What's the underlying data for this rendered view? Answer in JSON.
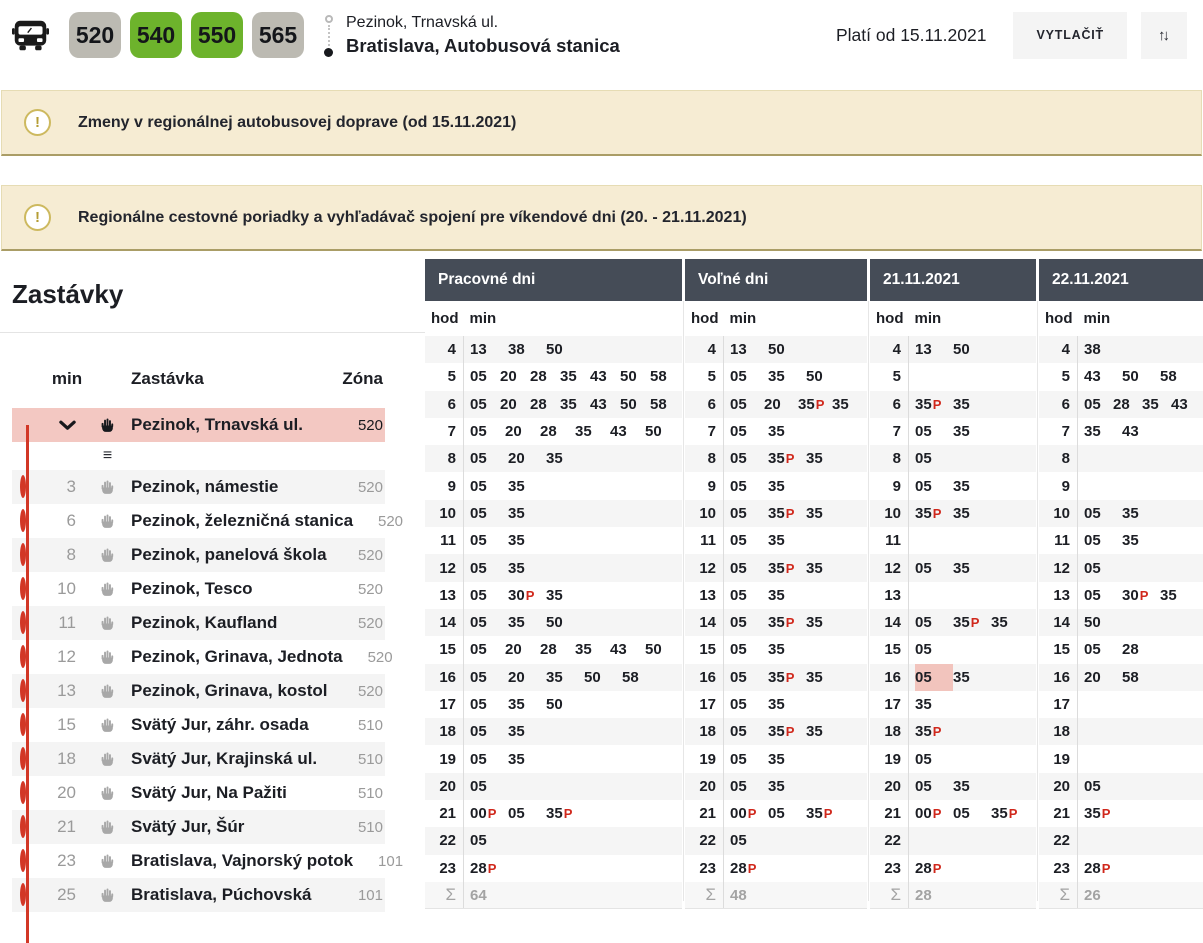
{
  "header": {
    "badges": [
      {
        "number": "520",
        "variant": "gray"
      },
      {
        "number": "540",
        "variant": "green"
      },
      {
        "number": "550",
        "variant": "green"
      },
      {
        "number": "565",
        "variant": "gray"
      }
    ],
    "origin": "Pezinok, Trnavská ul.",
    "destination": "Bratislava, Autobusová stanica",
    "plati_od": "Platí od 15.11.2021",
    "print_button": "VYTLAČIŤ",
    "swap_icon": "↑↓"
  },
  "icons": {
    "alert": "!",
    "details": "≡"
  },
  "colors": {
    "badge_green": "#6db32c",
    "badge_gray": "#bcbab2",
    "accent_red": "#d23726",
    "highlight_pink": "#f2c4bd",
    "header_dark": "#454c57",
    "alert_bg": "#f6ecd3"
  },
  "alerts": [
    {
      "text": "Zmeny v regionálnej autobusovej doprave (od 15.11.2021)"
    },
    {
      "text": "Regionálne cestovné poriadky a vyhľadávač spojení pre víkendové dni (20. - 21.11.2021)"
    }
  ],
  "stops": {
    "title": "Zastávky",
    "columns": {
      "min": "min",
      "stop": "Zastávka",
      "zone": "Zóna"
    },
    "active": {
      "name": "Pezinok, Trnavská ul.",
      "zone": "520"
    },
    "items": [
      {
        "min": "3",
        "name": "Pezinok, námestie",
        "zone": "520"
      },
      {
        "min": "6",
        "name": "Pezinok, železničná stanica",
        "zone": "520"
      },
      {
        "min": "8",
        "name": "Pezinok, panelová škola",
        "zone": "520"
      },
      {
        "min": "10",
        "name": "Pezinok, Tesco",
        "zone": "520"
      },
      {
        "min": "11",
        "name": "Pezinok, Kaufland",
        "zone": "520"
      },
      {
        "min": "12",
        "name": "Pezinok, Grinava, Jednota",
        "zone": "520"
      },
      {
        "min": "13",
        "name": "Pezinok, Grinava, kostol",
        "zone": "520"
      },
      {
        "min": "15",
        "name": "Svätý Jur, záhr. osada",
        "zone": "510"
      },
      {
        "min": "18",
        "name": "Svätý Jur, Krajinská ul.",
        "zone": "510"
      },
      {
        "min": "20",
        "name": "Svätý Jur, Na Pažiti",
        "zone": "510"
      },
      {
        "min": "21",
        "name": "Svätý Jur, Šúr",
        "zone": "510"
      },
      {
        "min": "23",
        "name": "Bratislava, Vajnorský potok",
        "zone": "101"
      },
      {
        "min": "25",
        "name": "Bratislava, Púchovská",
        "zone": "101"
      }
    ]
  },
  "timetable": {
    "hod_label": "hod",
    "min_label": "min",
    "sum_symbol": "Σ",
    "columns": [
      {
        "title": "Pracovné dni",
        "sum": "64",
        "rows": [
          {
            "hour": "4",
            "minutes": [
              "13",
              "38",
              "50"
            ]
          },
          {
            "hour": "5",
            "minutes": [
              "05",
              "20",
              "28",
              "35",
              "43",
              "50",
              "58"
            ]
          },
          {
            "hour": "6",
            "minutes": [
              "05",
              "20",
              "28",
              "35",
              "43",
              "50",
              "58"
            ]
          },
          {
            "hour": "7",
            "minutes": [
              "05",
              "20",
              "28",
              "35",
              "43",
              "50"
            ]
          },
          {
            "hour": "8",
            "minutes": [
              "05",
              "20",
              "35"
            ]
          },
          {
            "hour": "9",
            "minutes": [
              "05",
              "35"
            ]
          },
          {
            "hour": "10",
            "minutes": [
              "05",
              "35"
            ]
          },
          {
            "hour": "11",
            "minutes": [
              "05",
              "35"
            ]
          },
          {
            "hour": "12",
            "minutes": [
              "05",
              "35"
            ]
          },
          {
            "hour": "13",
            "minutes": [
              "05",
              "30P",
              "35"
            ]
          },
          {
            "hour": "14",
            "minutes": [
              "05",
              "35",
              "50"
            ]
          },
          {
            "hour": "15",
            "minutes": [
              "05",
              "20",
              "28",
              "35",
              "43",
              "50"
            ]
          },
          {
            "hour": "16",
            "minutes": [
              "05",
              "20",
              "35",
              "50",
              "58"
            ]
          },
          {
            "hour": "17",
            "minutes": [
              "05",
              "35",
              "50"
            ]
          },
          {
            "hour": "18",
            "minutes": [
              "05",
              "35"
            ]
          },
          {
            "hour": "19",
            "minutes": [
              "05",
              "35"
            ]
          },
          {
            "hour": "20",
            "minutes": [
              "05"
            ]
          },
          {
            "hour": "21",
            "minutes": [
              "00P",
              "05",
              "35P"
            ]
          },
          {
            "hour": "22",
            "minutes": [
              "05"
            ]
          },
          {
            "hour": "23",
            "minutes": [
              "28P"
            ]
          }
        ]
      },
      {
        "title": "Voľné dni",
        "sum": "48",
        "rows": [
          {
            "hour": "4",
            "minutes": [
              "13",
              "50"
            ]
          },
          {
            "hour": "5",
            "minutes": [
              "05",
              "35",
              "50"
            ]
          },
          {
            "hour": "6",
            "minutes": [
              "05",
              "20",
              "35P",
              "35"
            ]
          },
          {
            "hour": "7",
            "minutes": [
              "05",
              "35"
            ]
          },
          {
            "hour": "8",
            "minutes": [
              "05",
              "35P",
              "35"
            ]
          },
          {
            "hour": "9",
            "minutes": [
              "05",
              "35"
            ]
          },
          {
            "hour": "10",
            "minutes": [
              "05",
              "35P",
              "35"
            ]
          },
          {
            "hour": "11",
            "minutes": [
              "05",
              "35"
            ]
          },
          {
            "hour": "12",
            "minutes": [
              "05",
              "35P",
              "35"
            ]
          },
          {
            "hour": "13",
            "minutes": [
              "05",
              "35"
            ]
          },
          {
            "hour": "14",
            "minutes": [
              "05",
              "35P",
              "35"
            ]
          },
          {
            "hour": "15",
            "minutes": [
              "05",
              "35"
            ]
          },
          {
            "hour": "16",
            "minutes": [
              "05",
              "35P",
              "35"
            ]
          },
          {
            "hour": "17",
            "minutes": [
              "05",
              "35"
            ]
          },
          {
            "hour": "18",
            "minutes": [
              "05",
              "35P",
              "35"
            ]
          },
          {
            "hour": "19",
            "minutes": [
              "05",
              "35"
            ]
          },
          {
            "hour": "20",
            "minutes": [
              "05",
              "35"
            ]
          },
          {
            "hour": "21",
            "minutes": [
              "00P",
              "05",
              "35P"
            ]
          },
          {
            "hour": "22",
            "minutes": [
              "05"
            ]
          },
          {
            "hour": "23",
            "minutes": [
              "28P"
            ]
          }
        ]
      },
      {
        "title": "21.11.2021",
        "sum": "28",
        "highlight": {
          "hour": "16",
          "minute_index": 0
        },
        "rows": [
          {
            "hour": "4",
            "minutes": [
              "13",
              "50"
            ]
          },
          {
            "hour": "5",
            "minutes": []
          },
          {
            "hour": "6",
            "minutes": [
              "35P",
              "35"
            ]
          },
          {
            "hour": "7",
            "minutes": [
              "05",
              "35"
            ]
          },
          {
            "hour": "8",
            "minutes": [
              "05"
            ]
          },
          {
            "hour": "9",
            "minutes": [
              "05",
              "35"
            ]
          },
          {
            "hour": "10",
            "minutes": [
              "35P",
              "35"
            ]
          },
          {
            "hour": "11",
            "minutes": []
          },
          {
            "hour": "12",
            "minutes": [
              "05",
              "35"
            ]
          },
          {
            "hour": "13",
            "minutes": []
          },
          {
            "hour": "14",
            "minutes": [
              "05",
              "35P",
              "35"
            ]
          },
          {
            "hour": "15",
            "minutes": [
              "05"
            ]
          },
          {
            "hour": "16",
            "minutes": [
              "05",
              "35"
            ]
          },
          {
            "hour": "17",
            "minutes": [
              "35"
            ]
          },
          {
            "hour": "18",
            "minutes": [
              "35P"
            ]
          },
          {
            "hour": "19",
            "minutes": [
              "05"
            ]
          },
          {
            "hour": "20",
            "minutes": [
              "05",
              "35"
            ]
          },
          {
            "hour": "21",
            "minutes": [
              "00P",
              "05",
              "35P"
            ]
          },
          {
            "hour": "22",
            "minutes": []
          },
          {
            "hour": "23",
            "minutes": [
              "28P"
            ]
          }
        ]
      },
      {
        "title": "22.11.2021",
        "sum": "26",
        "rows": [
          {
            "hour": "4",
            "minutes": [
              "38"
            ]
          },
          {
            "hour": "5",
            "minutes": [
              "43",
              "50",
              "58"
            ]
          },
          {
            "hour": "6",
            "minutes": [
              "05",
              "28",
              "35",
              "43"
            ]
          },
          {
            "hour": "7",
            "minutes": [
              "35",
              "43"
            ]
          },
          {
            "hour": "8",
            "minutes": []
          },
          {
            "hour": "9",
            "minutes": []
          },
          {
            "hour": "10",
            "minutes": [
              "05",
              "35"
            ]
          },
          {
            "hour": "11",
            "minutes": [
              "05",
              "35"
            ]
          },
          {
            "hour": "12",
            "minutes": [
              "05"
            ]
          },
          {
            "hour": "13",
            "minutes": [
              "05",
              "30P",
              "35"
            ]
          },
          {
            "hour": "14",
            "minutes": [
              "50"
            ]
          },
          {
            "hour": "15",
            "minutes": [
              "05",
              "28"
            ]
          },
          {
            "hour": "16",
            "minutes": [
              "20",
              "58"
            ]
          },
          {
            "hour": "17",
            "minutes": []
          },
          {
            "hour": "18",
            "minutes": []
          },
          {
            "hour": "19",
            "minutes": []
          },
          {
            "hour": "20",
            "minutes": [
              "05"
            ]
          },
          {
            "hour": "21",
            "minutes": [
              "35P"
            ]
          },
          {
            "hour": "22",
            "minutes": []
          },
          {
            "hour": "23",
            "minutes": [
              "28P"
            ]
          }
        ]
      }
    ]
  }
}
